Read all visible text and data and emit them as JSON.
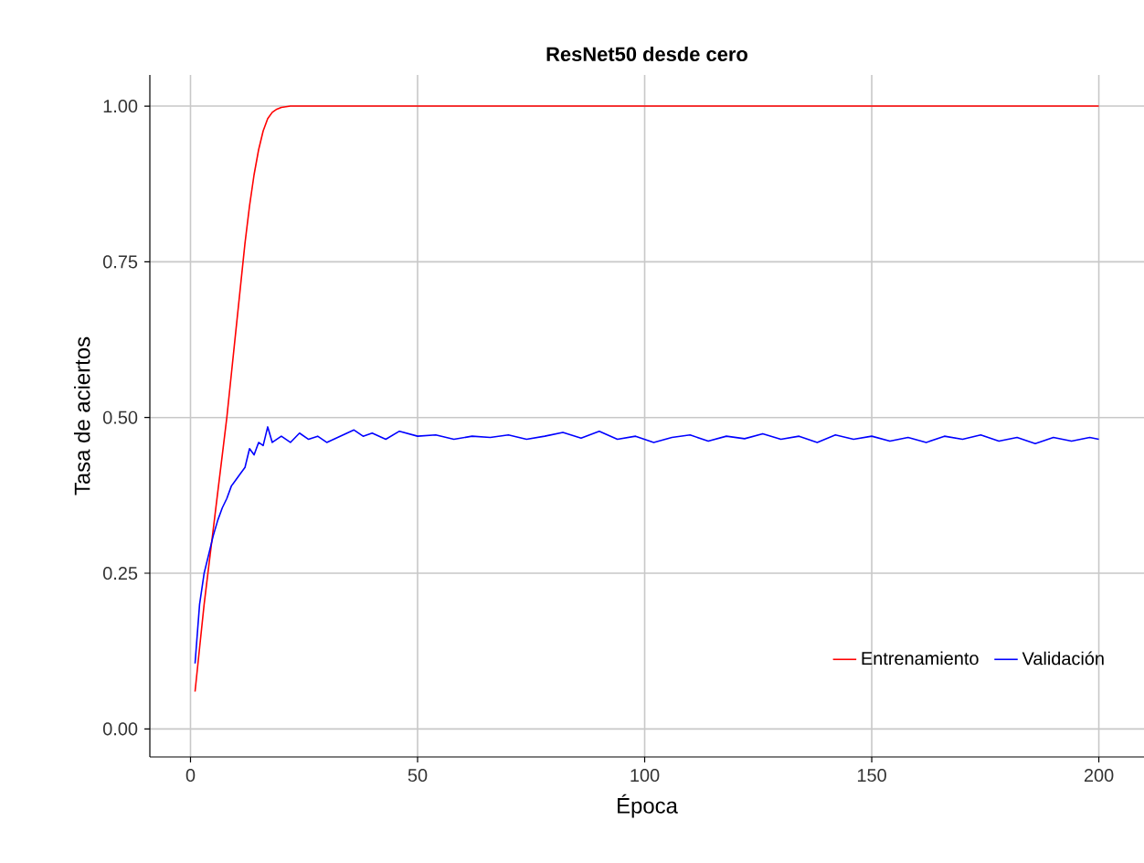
{
  "chart_data": {
    "type": "line",
    "title": "ResNet50 desde cero",
    "xlabel": "Época",
    "ylabel": "Tasa de aciertos",
    "xlim": [
      -8.95,
      209.95
    ],
    "ylim": [
      -0.045,
      1.05
    ],
    "xticks": [
      0,
      50,
      100,
      150,
      200
    ],
    "yticks": [
      {
        "value": 0,
        "label": "0.00"
      },
      {
        "value": 0.25,
        "label": "0.25"
      },
      {
        "value": 0.5,
        "label": "0.50"
      },
      {
        "value": 0.75,
        "label": "0.75"
      },
      {
        "value": 1,
        "label": "1.00"
      }
    ],
    "grid": true,
    "legend": "bottom right",
    "line_style": "solid",
    "series": [
      {
        "name": "Entrenamiento",
        "color": "#ff0000",
        "x": [
          1,
          2,
          3,
          4,
          5,
          6,
          7,
          8,
          9,
          10,
          11,
          12,
          13,
          14,
          15,
          16,
          17,
          18,
          19,
          20,
          22,
          200
        ],
        "values": [
          0.06,
          0.13,
          0.2,
          0.26,
          0.32,
          0.38,
          0.44,
          0.5,
          0.57,
          0.64,
          0.71,
          0.78,
          0.84,
          0.89,
          0.93,
          0.96,
          0.98,
          0.99,
          0.995,
          0.998,
          1.0,
          1.0
        ]
      },
      {
        "name": "Validación",
        "color": "#0000ff",
        "x": [
          1,
          2,
          3,
          4,
          5,
          6,
          7,
          8,
          9,
          10,
          11,
          12,
          13,
          14,
          15,
          16,
          17,
          18,
          19,
          20,
          22,
          24,
          26,
          28,
          30,
          33,
          36,
          38,
          40,
          43,
          46,
          50,
          54,
          58,
          62,
          66,
          70,
          74,
          78,
          82,
          86,
          90,
          94,
          98,
          102,
          106,
          110,
          114,
          118,
          122,
          126,
          130,
          134,
          138,
          142,
          146,
          150,
          154,
          158,
          162,
          166,
          170,
          174,
          178,
          182,
          186,
          190,
          194,
          198,
          200
        ],
        "values": [
          0.105,
          0.2,
          0.25,
          0.28,
          0.31,
          0.335,
          0.355,
          0.37,
          0.39,
          0.4,
          0.41,
          0.42,
          0.45,
          0.44,
          0.46,
          0.455,
          0.485,
          0.46,
          0.465,
          0.47,
          0.46,
          0.475,
          0.465,
          0.47,
          0.46,
          0.47,
          0.48,
          0.47,
          0.475,
          0.465,
          0.478,
          0.47,
          0.472,
          0.465,
          0.47,
          0.468,
          0.472,
          0.465,
          0.47,
          0.476,
          0.467,
          0.478,
          0.465,
          0.47,
          0.46,
          0.468,
          0.472,
          0.462,
          0.47,
          0.466,
          0.474,
          0.465,
          0.47,
          0.46,
          0.472,
          0.465,
          0.47,
          0.462,
          0.468,
          0.46,
          0.47,
          0.465,
          0.472,
          0.462,
          0.468,
          0.458,
          0.468,
          0.462,
          0.468,
          0.465
        ]
      }
    ]
  }
}
